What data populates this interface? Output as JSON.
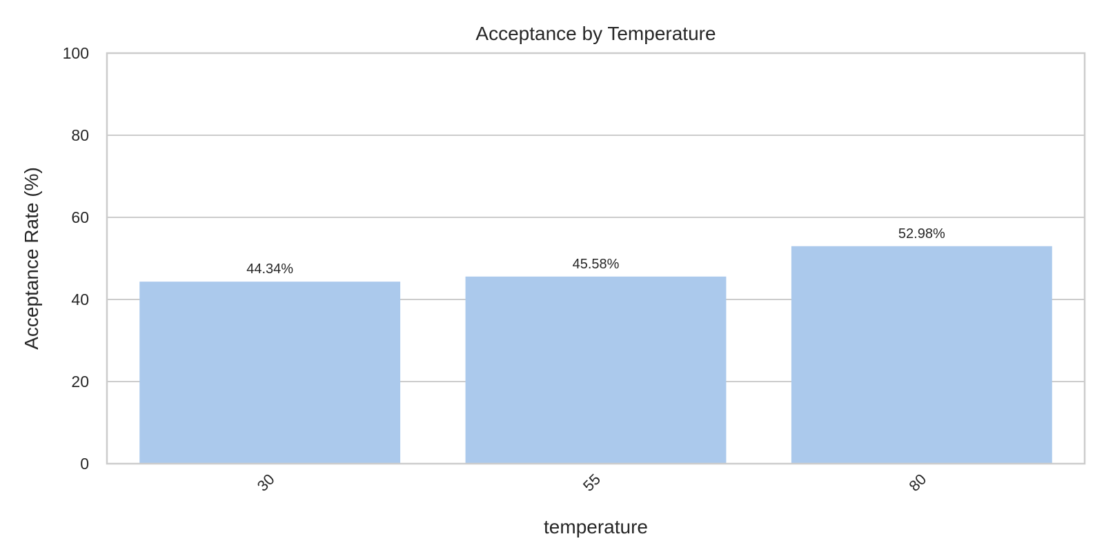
{
  "chart_data": {
    "type": "bar",
    "title": "Acceptance by Temperature",
    "xlabel": "temperature",
    "ylabel": "Acceptance Rate (%)",
    "categories": [
      "30",
      "55",
      "80"
    ],
    "values": [
      44.34,
      45.58,
      52.98
    ],
    "data_labels": [
      "44.34%",
      "45.58%",
      "52.98%"
    ],
    "ylim": [
      0,
      100
    ],
    "yticks": [
      0,
      20,
      40,
      60,
      80,
      100
    ],
    "grid": "horizontal",
    "bar_color": "#abc9ec",
    "xtick_rotation": 45
  }
}
